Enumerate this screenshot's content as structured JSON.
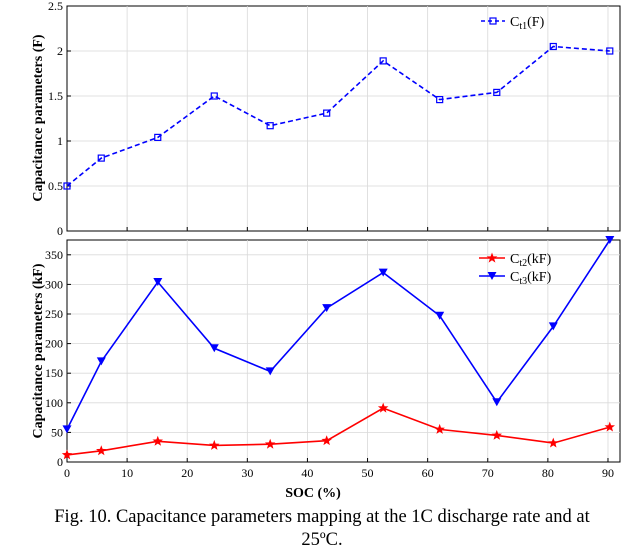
{
  "chart_data": [
    {
      "type": "line",
      "ylabel": "Capacitance parameters (F)",
      "xlabel": "",
      "xlim": [
        0,
        92
      ],
      "ylim": [
        0,
        2.5
      ],
      "yticks": [
        0,
        0.5,
        1,
        1.5,
        2,
        2.5
      ],
      "ytick_labels": [
        "0",
        "0.5",
        "1",
        "1.5",
        "2",
        "2.5"
      ],
      "grid": true,
      "legend_position": "top-right",
      "series": [
        {
          "name": "C",
          "name_sub": "t1",
          "name_suffix": "(F)",
          "color": "#0000ff",
          "line_style": "dashed",
          "marker": "square",
          "x": [
            0,
            5.7,
            15.1,
            24.5,
            33.8,
            43.2,
            52.6,
            62.0,
            71.5,
            80.9,
            90.3
          ],
          "y": [
            0.5,
            0.81,
            1.04,
            1.5,
            1.17,
            1.31,
            1.89,
            1.46,
            1.54,
            2.05,
            2.0
          ]
        }
      ]
    },
    {
      "type": "line",
      "ylabel": "Capacitance parameters (kF)",
      "xlabel": "SOC (%)",
      "xlim": [
        0,
        92
      ],
      "ylim": [
        0,
        375
      ],
      "xticks": [
        0,
        10,
        20,
        30,
        40,
        50,
        60,
        70,
        80,
        90
      ],
      "xtick_labels": [
        "0",
        "10",
        "20",
        "30",
        "40",
        "50",
        "60",
        "70",
        "80",
        "90"
      ],
      "yticks": [
        0,
        50,
        100,
        150,
        200,
        250,
        300,
        350
      ],
      "ytick_labels": [
        "0",
        "50",
        "100",
        "150",
        "200",
        "250",
        "300",
        "350"
      ],
      "grid": true,
      "legend_position": "top-right",
      "series": [
        {
          "name": "C",
          "name_sub": "t2",
          "name_suffix": "(kF)",
          "color": "#ff0000",
          "line_style": "solid",
          "marker": "star",
          "x": [
            0,
            5.7,
            15.1,
            24.5,
            33.8,
            43.2,
            52.6,
            62.0,
            71.5,
            80.9,
            90.3
          ],
          "y": [
            12,
            19,
            35,
            28,
            30,
            36,
            91,
            55,
            45,
            32,
            59
          ]
        },
        {
          "name": "C",
          "name_sub": "t3",
          "name_suffix": "(kF)",
          "color": "#0000ff",
          "line_style": "solid",
          "marker": "triangle-down",
          "x": [
            0,
            5.7,
            15.1,
            24.5,
            33.8,
            43.2,
            52.6,
            62.0,
            71.5,
            80.9,
            90.3
          ],
          "y": [
            55,
            170,
            304,
            192,
            153,
            260,
            320,
            247,
            101,
            229,
            375
          ]
        }
      ]
    }
  ],
  "caption": {
    "line1": "Fig. 10. Capacitance parameters mapping at the 1C discharge rate and at",
    "line2": "25ºC."
  }
}
